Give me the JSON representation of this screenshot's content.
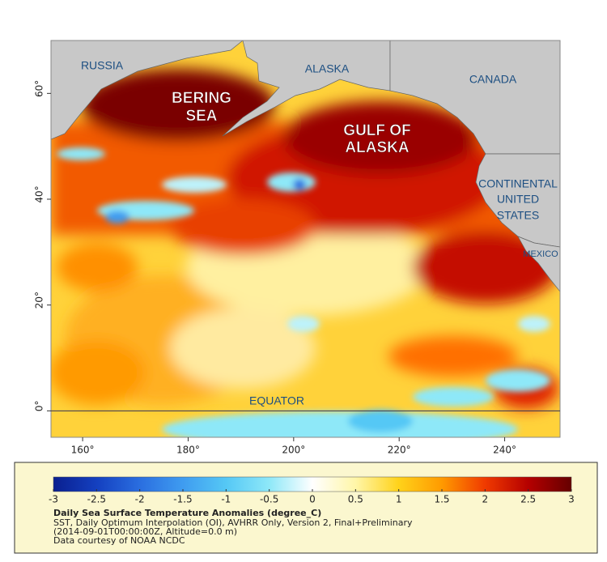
{
  "map": {
    "type": "map",
    "xlim": [
      154,
      250.5
    ],
    "ylim": [
      -5,
      70
    ],
    "xticks": [
      {
        "value": 160,
        "label": "160°"
      },
      {
        "value": 180,
        "label": "180°"
      },
      {
        "value": 200,
        "label": "200°"
      },
      {
        "value": 220,
        "label": "220°"
      },
      {
        "value": 240,
        "label": "240°"
      }
    ],
    "yticks": [
      {
        "value": 0,
        "label": "0°"
      },
      {
        "value": 20,
        "label": "20°"
      },
      {
        "value": 40,
        "label": "40°"
      },
      {
        "value": 60,
        "label": "60°"
      }
    ],
    "place_labels": [
      [
        "RUSSIA"
      ],
      [
        "ALASKA"
      ],
      [
        "CANADA"
      ],
      [
        "BERING",
        "SEA"
      ],
      [
        "GULF OF",
        "ALASKA"
      ],
      [
        "CONTINENTAL",
        "UNITED",
        "STATES"
      ],
      [
        "MEXICO"
      ],
      [
        "EQUATOR"
      ]
    ]
  },
  "colorbar": {
    "lim": [
      -3,
      3
    ],
    "ticks": [
      -3,
      -2.5,
      -2,
      -1.5,
      -1,
      -0.5,
      0,
      0.5,
      1,
      1.5,
      2,
      2.5,
      3
    ],
    "colors": [
      "#0a1f8f",
      "#1440c0",
      "#2a6ee0",
      "#3f9cf0",
      "#55c8f5",
      "#8ee8f8",
      "#ffffff",
      "#fff6a8",
      "#ffd21a",
      "#ff9a00",
      "#f03a00",
      "#b50000",
      "#650000"
    ]
  },
  "caption": {
    "title": "Daily Sea Surface Temperature Anomalies (degree_C)",
    "lines": [
      "SST, Daily Optimum Interpolation (OI), AVHRR Only, Version 2, Final+Preliminary",
      "(2014-09-01T00:00:00Z, Altitude=0.0 m)",
      "Data courtesy of NOAA NCDC"
    ]
  }
}
